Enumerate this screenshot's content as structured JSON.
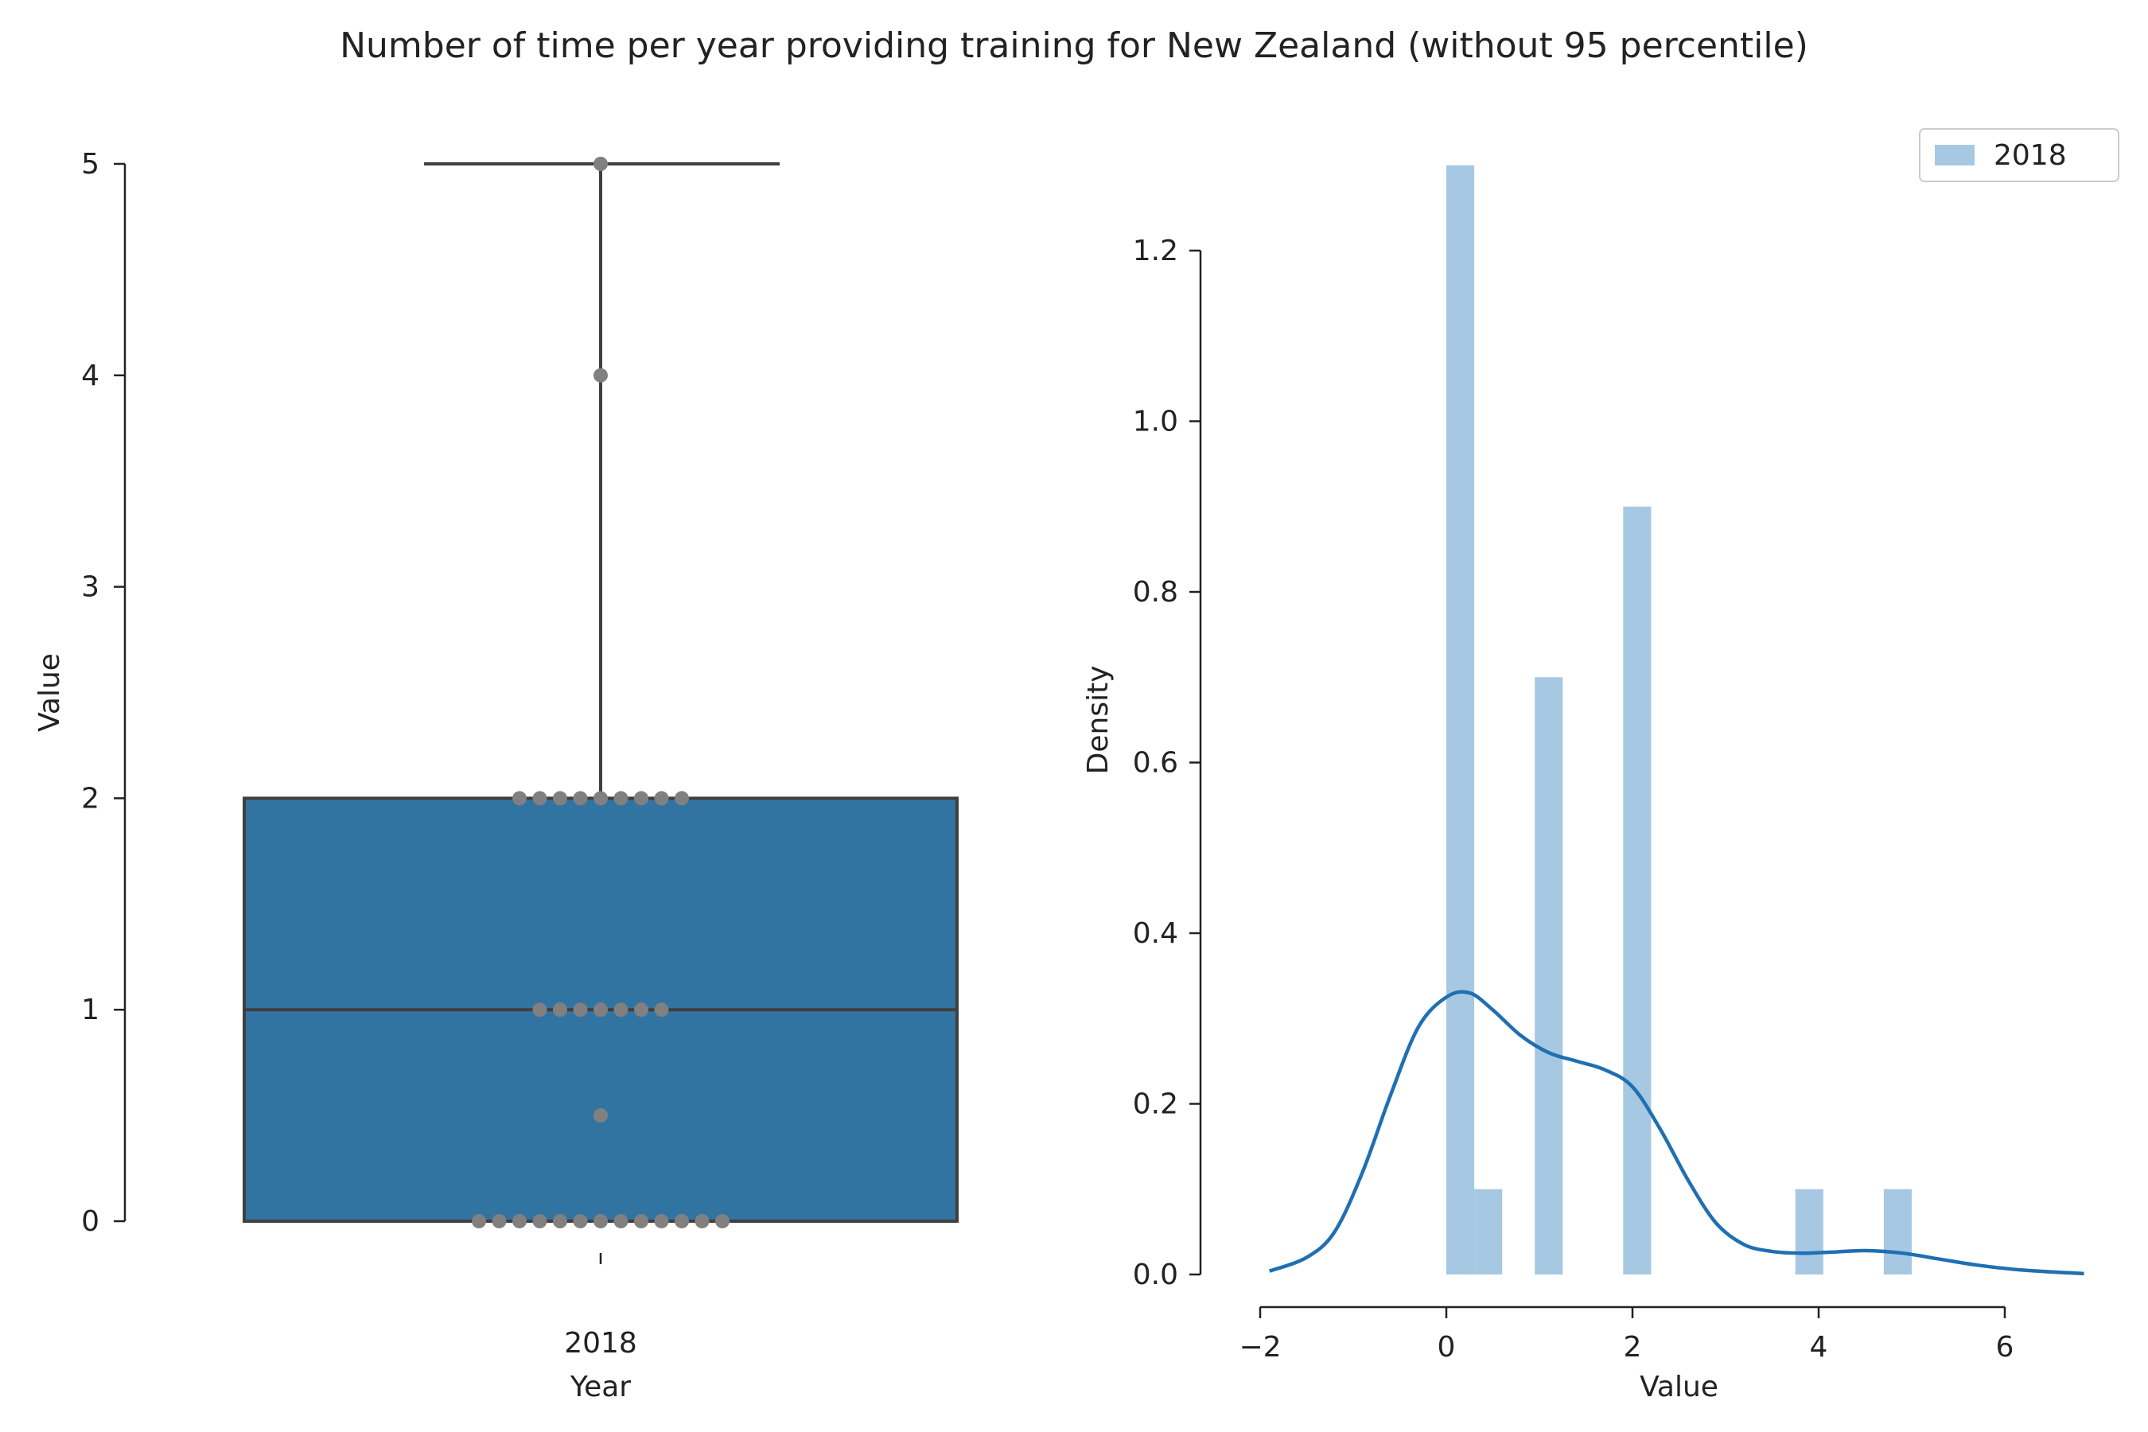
{
  "title": "Number of time per year providing training for New Zealand (without 95 percentile)",
  "chart_data": [
    {
      "type": "box",
      "xlabel": "Year",
      "ylabel": "Value",
      "categories": [
        "2018"
      ],
      "ylim": [
        0,
        5
      ],
      "yticks": [
        0,
        1,
        2,
        3,
        4,
        5
      ],
      "box": {
        "min": 0,
        "q1": 0,
        "median": 1,
        "q3": 2,
        "max": 5
      },
      "box_color": "#3274a1",
      "swarm": {
        "color": "#808080",
        "points": [
          {
            "value": 0,
            "count": 13
          },
          {
            "value": 0.5,
            "count": 1
          },
          {
            "value": 1,
            "count": 7
          },
          {
            "value": 2,
            "count": 9
          },
          {
            "value": 4,
            "count": 1
          },
          {
            "value": 5,
            "count": 1
          }
        ]
      }
    },
    {
      "type": "histogram",
      "xlabel": "Value",
      "ylabel": "Density",
      "xlim": [
        -2,
        7
      ],
      "xticks": [
        -2,
        0,
        2,
        4,
        6
      ],
      "xtick_labels": [
        "−2",
        "0",
        "2",
        "4",
        "6"
      ],
      "ylim": [
        0,
        1.3
      ],
      "yticks": [
        0.0,
        0.2,
        0.4,
        0.6,
        0.8,
        1.0,
        1.2
      ],
      "ytick_labels": [
        "0.0",
        "0.2",
        "0.4",
        "0.6",
        "0.8",
        "1.0",
        "1.2"
      ],
      "legend": {
        "label": "2018",
        "position": "top-right"
      },
      "bar_color": "#a6c8e3",
      "kde_color": "#1f6fb2",
      "bins": [
        {
          "x0": 0.0,
          "x1": 0.3,
          "density": 1.3
        },
        {
          "x0": 0.3,
          "x1": 0.6,
          "density": 0.1
        },
        {
          "x0": 0.95,
          "x1": 1.25,
          "density": 0.7
        },
        {
          "x0": 1.9,
          "x1": 2.2,
          "density": 0.9
        },
        {
          "x0": 3.75,
          "x1": 4.05,
          "density": 0.1
        },
        {
          "x0": 4.7,
          "x1": 5.0,
          "density": 0.1
        }
      ],
      "kde": {
        "x": [
          -1.9,
          -1.5,
          -1.2,
          -0.9,
          -0.6,
          -0.3,
          0.0,
          0.25,
          0.5,
          0.8,
          1.1,
          1.4,
          1.7,
          2.0,
          2.3,
          2.6,
          2.9,
          3.2,
          3.5,
          3.8,
          4.1,
          4.5,
          4.9,
          5.3,
          5.7,
          6.1,
          6.5,
          6.85
        ],
        "y": [
          0.004,
          0.02,
          0.05,
          0.12,
          0.21,
          0.29,
          0.325,
          0.33,
          0.31,
          0.28,
          0.26,
          0.25,
          0.24,
          0.22,
          0.17,
          0.11,
          0.06,
          0.035,
          0.027,
          0.025,
          0.026,
          0.028,
          0.025,
          0.018,
          0.011,
          0.006,
          0.003,
          0.001
        ]
      }
    }
  ]
}
